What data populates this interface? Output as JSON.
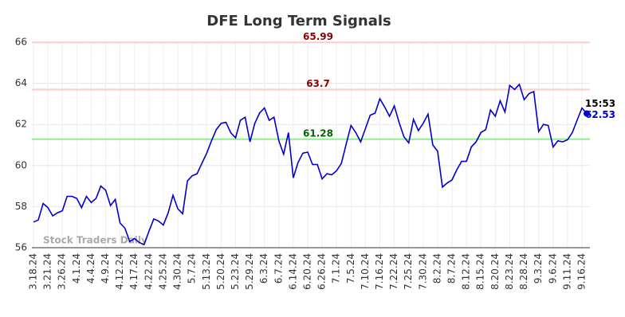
{
  "chart_data": {
    "type": "line",
    "title": "DFE Long Term Signals",
    "watermark": "Stock Traders Daily",
    "last_time": "15:53",
    "color": "#0000cc",
    "categories": [
      "3.18.24",
      null,
      null,
      "3.21.24",
      null,
      null,
      "3.26.24",
      null,
      null,
      "4.1.24",
      null,
      null,
      "4.4.24",
      null,
      null,
      "4.9.24",
      null,
      null,
      "4.12.24",
      null,
      null,
      "4.17.24",
      null,
      null,
      "4.22.24",
      null,
      null,
      "4.25.24",
      null,
      null,
      "4.30.24",
      null,
      null,
      "5.7.24",
      null,
      null,
      "5.13.24",
      null,
      null,
      "5.20.24",
      null,
      null,
      "5.23.24",
      null,
      null,
      "5.29.24",
      null,
      null,
      "6.3.24",
      null,
      null,
      "6.7.24",
      null,
      null,
      "6.14.24",
      null,
      null,
      "6.20.24",
      null,
      null,
      "6.26.24",
      null,
      null,
      "7.1.24",
      null,
      null,
      "7.5.24",
      null,
      null,
      "7.10.24",
      null,
      null,
      "7.16.24",
      null,
      null,
      "7.22.24",
      null,
      null,
      "7.25.24",
      null,
      null,
      "7.30.24",
      null,
      null,
      "8.2.24",
      null,
      null,
      "8.7.24",
      null,
      null,
      "8.12.24",
      null,
      null,
      "8.15.24",
      null,
      null,
      "8.20.24",
      null,
      null,
      "8.23.24",
      null,
      null,
      "8.28.24",
      null,
      null,
      "9.3.24",
      null,
      null,
      "9.6.24",
      null,
      null,
      "9.11.24",
      null,
      null,
      "9.16.24",
      null
    ],
    "values": [
      57.25,
      57.35,
      58.15,
      57.95,
      57.55,
      57.7,
      57.8,
      58.5,
      58.5,
      58.4,
      57.95,
      58.5,
      58.2,
      58.4,
      59.0,
      58.8,
      58.05,
      58.35,
      57.2,
      56.95,
      56.3,
      56.45,
      56.25,
      56.15,
      56.8,
      57.4,
      57.3,
      57.1,
      57.7,
      58.55,
      57.9,
      57.65,
      59.25,
      59.5,
      59.6,
      60.1,
      60.6,
      61.2,
      61.75,
      62.05,
      62.1,
      61.6,
      61.35,
      62.2,
      62.35,
      61.15,
      62.05,
      62.55,
      62.8,
      62.2,
      62.35,
      61.2,
      60.55,
      61.6,
      59.4,
      60.15,
      60.6,
      60.65,
      60.05,
      60.05,
      59.35,
      59.6,
      59.55,
      59.75,
      60.1,
      61.05,
      61.95,
      61.6,
      61.15,
      61.8,
      62.45,
      62.55,
      63.25,
      62.85,
      62.4,
      62.9,
      62.1,
      61.4,
      61.1,
      62.25,
      61.7,
      62.05,
      62.5,
      61.0,
      60.7,
      58.95,
      59.15,
      59.3,
      59.8,
      60.2,
      60.2,
      60.9,
      61.15,
      61.6,
      61.75,
      62.7,
      62.4,
      63.15,
      62.6,
      63.9,
      63.7,
      63.95,
      63.2,
      63.5,
      63.6,
      61.65,
      62.0,
      61.95,
      60.9,
      61.2,
      61.15,
      61.25,
      61.6,
      62.2,
      62.8,
      62.53
    ],
    "hlines": [
      {
        "value": 65.99,
        "color": "#ffcccc",
        "label_color": "#8b0000"
      },
      {
        "value": 63.7,
        "color": "#ffcccc",
        "label_color": "#8b0000"
      },
      {
        "value": 61.28,
        "color": "#90ee90",
        "label_color": "#006400"
      }
    ],
    "ylim": [
      56,
      66
    ],
    "yticks": [
      56,
      58,
      60,
      62,
      64,
      66
    ],
    "grid": true
  }
}
